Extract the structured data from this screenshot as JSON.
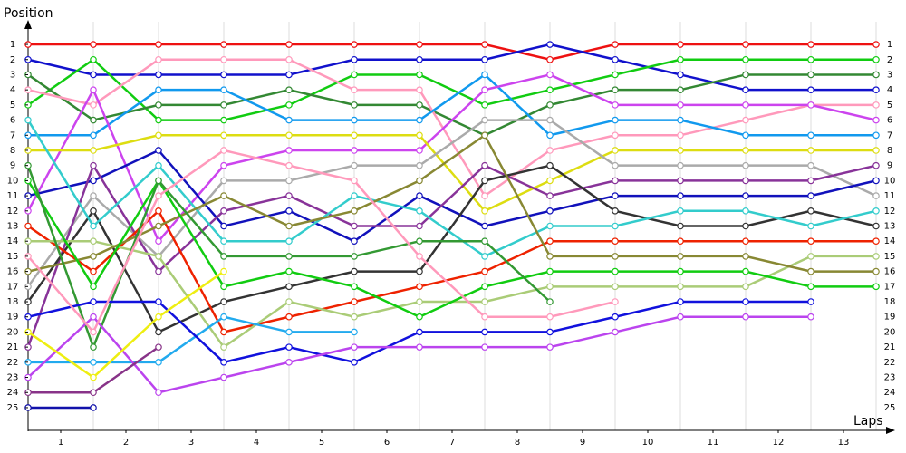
{
  "chart_data": {
    "type": "line",
    "y_label": "Position",
    "x_label": "Laps",
    "x": [
      0,
      1,
      2,
      3,
      4,
      5,
      6,
      7,
      8,
      9,
      10,
      11,
      12,
      13
    ],
    "xlim": [
      0,
      13
    ],
    "xticks": [
      {
        "value": 0.5,
        "label": "1"
      },
      {
        "value": 1.5,
        "label": "2"
      },
      {
        "value": 2.5,
        "label": "3"
      },
      {
        "value": 3.5,
        "label": "4"
      },
      {
        "value": 4.5,
        "label": "5"
      },
      {
        "value": 5.5,
        "label": "6"
      },
      {
        "value": 6.5,
        "label": "7"
      },
      {
        "value": 7.5,
        "label": "8"
      },
      {
        "value": 8.5,
        "label": "9"
      },
      {
        "value": 9.5,
        "label": "10"
      },
      {
        "value": 10.5,
        "label": "11"
      },
      {
        "value": 11.5,
        "label": "12"
      },
      {
        "value": 12.5,
        "label": "13"
      }
    ],
    "ylim": [
      26.5,
      -0.5
    ],
    "yticks": [
      1,
      2,
      3,
      4,
      5,
      6,
      7,
      8,
      9,
      10,
      11,
      12,
      13,
      14,
      15,
      16,
      17,
      18,
      19,
      20,
      21,
      22,
      23,
      24,
      25
    ],
    "grid": true,
    "series": [
      {
        "color": "#ee1111",
        "values": [
          1,
          1,
          1,
          1,
          1,
          1,
          1,
          1,
          2,
          1,
          1,
          1,
          1,
          1
        ]
      },
      {
        "color": "#1111cc",
        "values": [
          2,
          3,
          3,
          3,
          3,
          2,
          2,
          2,
          1,
          2,
          3,
          4,
          4,
          4
        ]
      },
      {
        "color": "#11cc11",
        "values": [
          5,
          2,
          6,
          6,
          5,
          3,
          3,
          5,
          4,
          3,
          2,
          2,
          2,
          2
        ]
      },
      {
        "color": "#338833",
        "values": [
          3,
          6,
          5,
          5,
          4,
          5,
          5,
          7,
          5,
          4,
          4,
          3,
          3,
          3
        ]
      },
      {
        "color": "#ff99bb",
        "values": [
          4,
          5,
          2,
          2,
          2,
          4,
          4,
          11,
          8,
          7,
          7,
          6,
          5,
          5
        ]
      },
      {
        "color": "#1199ee",
        "values": [
          7,
          7,
          4,
          4,
          6,
          6,
          6,
          3,
          7,
          6,
          6,
          7,
          7,
          7
        ]
      },
      {
        "color": "#cc44ee",
        "values": [
          12,
          4,
          14,
          9,
          8,
          8,
          8,
          4,
          3,
          5,
          5,
          5,
          5,
          6
        ]
      },
      {
        "color": "#dddd11",
        "values": [
          8,
          8,
          7,
          7,
          7,
          7,
          7,
          12,
          10,
          8,
          8,
          8,
          8,
          8
        ]
      },
      {
        "color": "#aaaaaa",
        "values": [
          17,
          11,
          15,
          10,
          10,
          9,
          9,
          6,
          6,
          9,
          9,
          9,
          9,
          11
        ]
      },
      {
        "color": "#1111bb",
        "values": [
          11,
          10,
          8,
          13,
          12,
          14,
          11,
          13,
          12,
          11,
          11,
          11,
          11,
          10
        ]
      },
      {
        "color": "#883399",
        "values": [
          21,
          9,
          16,
          12,
          11,
          13,
          13,
          9,
          11,
          10,
          10,
          10,
          10,
          9
        ]
      },
      {
        "color": "#333333",
        "values": [
          18,
          12,
          20,
          18,
          17,
          16,
          16,
          10,
          9,
          12,
          13,
          13,
          12,
          13
        ]
      },
      {
        "color": "#33cccc",
        "values": [
          6,
          13,
          9,
          14,
          14,
          11,
          12,
          15,
          13,
          13,
          12,
          12,
          13,
          12
        ]
      },
      {
        "color": "#ee2200",
        "values": [
          13,
          16,
          12,
          20,
          19,
          18,
          17,
          16,
          14,
          14,
          14,
          14,
          14,
          14
        ]
      },
      {
        "color": "#aacc77",
        "values": [
          14,
          14,
          15,
          21,
          18,
          19,
          18,
          18,
          17,
          17,
          17,
          17,
          15,
          15
        ]
      },
      {
        "color": "#888833",
        "values": [
          16,
          15,
          13,
          11,
          13,
          12,
          10,
          7,
          15,
          15,
          15,
          15,
          16,
          16
        ]
      },
      {
        "color": "#11cc11",
        "values": [
          10,
          17,
          10,
          17,
          16,
          17,
          19,
          17,
          16,
          16,
          16,
          16,
          17,
          17
        ]
      },
      {
        "color": "#339933",
        "values": [
          9,
          21,
          10,
          15,
          15,
          15,
          14,
          14,
          18,
          null,
          null,
          null,
          null,
          null
        ]
      },
      {
        "color": "#22aaee",
        "values": [
          22,
          22,
          22,
          19,
          20,
          20,
          null,
          null,
          null,
          null,
          null,
          null,
          null,
          null
        ]
      },
      {
        "color": "#1111dd",
        "values": [
          19,
          18,
          18,
          22,
          21,
          22,
          20,
          20,
          20,
          19,
          18,
          18,
          18,
          null
        ]
      },
      {
        "color": "#bb44ee",
        "values": [
          23,
          19,
          24,
          23,
          22,
          21,
          21,
          21,
          21,
          20,
          19,
          19,
          19,
          null
        ]
      },
      {
        "color": "#eeee11",
        "values": [
          20,
          23,
          19,
          16,
          null,
          null,
          null,
          null,
          null,
          null,
          null,
          null,
          null,
          null
        ]
      },
      {
        "color": "#883388",
        "values": [
          24,
          24,
          21,
          null,
          null,
          null,
          null,
          null,
          null,
          null,
          null,
          null,
          null,
          null
        ]
      },
      {
        "color": "#1111aa",
        "values": [
          25,
          25,
          null,
          null,
          null,
          null,
          null,
          null,
          null,
          null,
          null,
          null,
          null,
          null
        ]
      },
      {
        "color": "#ff99bb",
        "values": [
          15,
          20,
          11,
          8,
          9,
          10,
          15,
          19,
          19,
          18,
          null,
          null,
          null,
          null
        ]
      }
    ]
  }
}
